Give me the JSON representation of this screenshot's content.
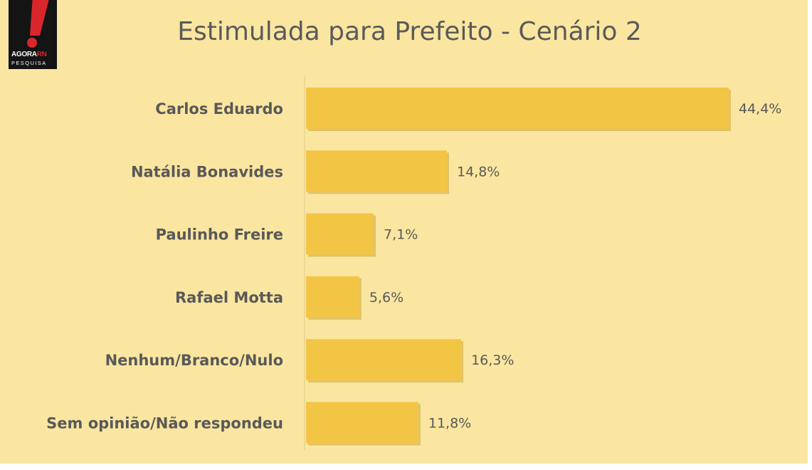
{
  "logo": {
    "brand_primary": "AGORA",
    "brand_secondary": "RN",
    "brand_sub": "PESQUISA"
  },
  "chart_data": {
    "type": "bar",
    "orientation": "horizontal",
    "title": "Estimulada para Prefeito - Cenário 2",
    "categories": [
      "Carlos Eduardo",
      "Natália Bonavides",
      "Paulinho Freire",
      "Rafael Motta",
      "Nenhum/Branco/Nulo",
      "Sem opinião/Não respondeu"
    ],
    "values": [
      44.4,
      14.8,
      7.1,
      5.6,
      16.3,
      11.8
    ],
    "value_labels": [
      "44,4%",
      "14,8%",
      "7,1%",
      "5,6%",
      "16,3%",
      "11,8%"
    ],
    "xlim": [
      0,
      44.4
    ],
    "grid": false,
    "legend": "none",
    "colors": {
      "bar": "#f3c545",
      "bar_shadow": "#c9a642",
      "background": "#fae6a0",
      "text": "#595959"
    }
  }
}
